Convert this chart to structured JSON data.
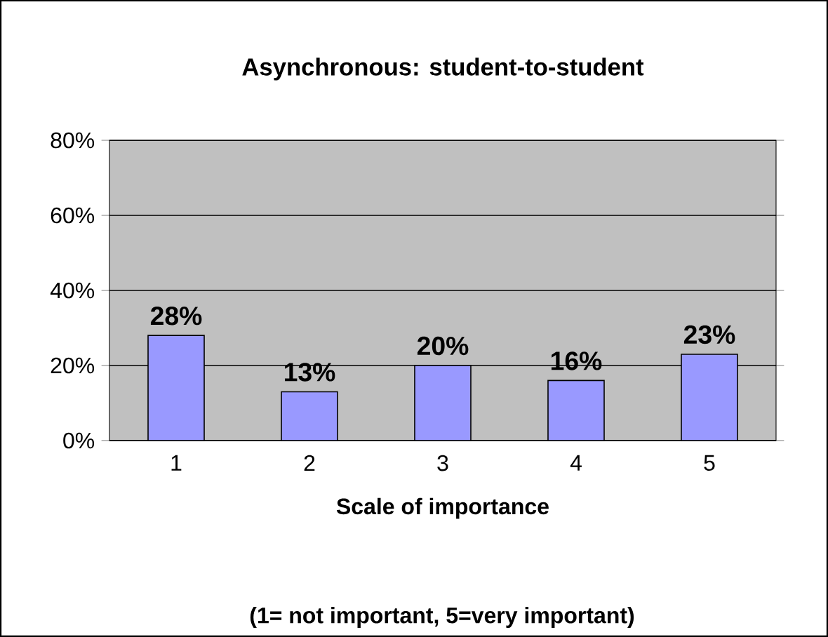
{
  "chart_data": {
    "type": "bar",
    "title": "Asynchronous: student-to-student",
    "xlabel": "Scale of importance",
    "annotations": [
      "(1= not important, 5=very important)"
    ],
    "categories": [
      "1",
      "2",
      "3",
      "4",
      "5"
    ],
    "values": [
      28,
      13,
      20,
      16,
      23
    ],
    "value_labels": [
      "28%",
      "13%",
      "20%",
      "16%",
      "23%"
    ],
    "color": "#9999ff",
    "ylim": [
      0,
      80
    ],
    "yticks": [
      {
        "value": 0,
        "label": "0%"
      },
      {
        "value": 20,
        "label": "20%"
      },
      {
        "value": 40,
        "label": "40%"
      },
      {
        "value": 60,
        "label": "60%"
      },
      {
        "value": 80,
        "label": "80%"
      }
    ],
    "grid": "y"
  }
}
